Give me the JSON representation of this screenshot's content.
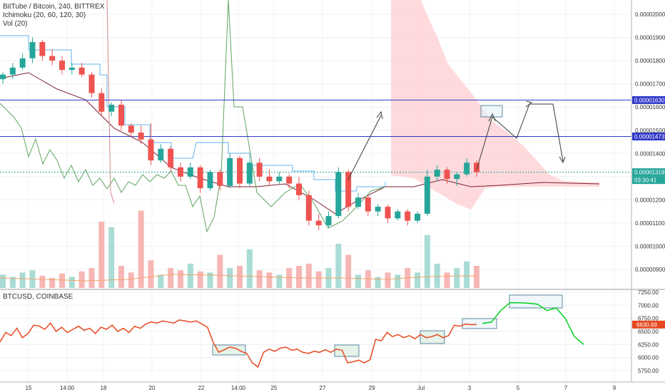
{
  "legend": {
    "symbol": "BitTube / Bitcoin, 240, BITTREX",
    "ichimoku": "Ichimoku (20, 60, 120, 30)",
    "volume": "Vol (20)",
    "lower_symbol": "BTCUSD, COINBASE"
  },
  "colors": {
    "up": "#26a69a",
    "down": "#ef5350",
    "cloud": "#ffcdd2",
    "hline": "#2f37c8",
    "btc_line": "#e8481f",
    "projection": "#00d11c"
  },
  "main_axis": {
    "ticks": [
      "0.00002000",
      "0.00001900",
      "0.00001800",
      "0.00001700",
      "0.00001600",
      "0.00001500",
      "0.00001400",
      "0.00001300",
      "0.00001200",
      "0.00001100",
      "0.00001000",
      "0.00000900"
    ],
    "badges": [
      {
        "label": "0.00001630",
        "color": "#2f37c8"
      },
      {
        "label": "0.00001473",
        "color": "#2f37c8"
      },
      {
        "label": "0.00001319",
        "color": "#26a69a"
      },
      {
        "label": "03:30:41",
        "color": "#26a69a"
      }
    ]
  },
  "lower_axis": {
    "ticks": [
      "7250.00",
      "7000.00",
      "6750.00",
      "6500.00",
      "6250.00",
      "6000.00",
      "5750.00"
    ],
    "badge": "6630.69"
  },
  "x_axis": {
    "ticks": [
      "15",
      "14:00",
      "18",
      "20",
      "22",
      "14:00",
      "25",
      "27",
      "29",
      "Jul",
      "3",
      "5",
      "7",
      "9"
    ]
  },
  "chart_data": [
    {
      "type": "candlestick",
      "title": "BitTube / Bitcoin, 240, BITTREX",
      "ylim": [
        8.5e-06,
        2.1e-05
      ],
      "hlines": [
        1.63e-05,
        1.473e-05
      ],
      "last_price": 1.319e-05,
      "candles": [
        [
          1.72e-05,
          1.75e-05,
          1.7e-05,
          1.74e-05
        ],
        [
          1.74e-05,
          1.79e-05,
          1.72e-05,
          1.77e-05
        ],
        [
          1.77e-05,
          1.83e-05,
          1.76e-05,
          1.81e-05
        ],
        [
          1.81e-05,
          1.9e-05,
          1.79e-05,
          1.88e-05
        ],
        [
          1.88e-05,
          1.89e-05,
          1.8e-05,
          1.82e-05
        ],
        [
          1.82e-05,
          1.85e-05,
          1.78e-05,
          1.8e-05
        ],
        [
          1.8e-05,
          1.82e-05,
          1.74e-05,
          1.76e-05
        ],
        [
          1.76e-05,
          1.79e-05,
          1.74e-05,
          1.77e-05
        ],
        [
          1.77e-05,
          1.79e-05,
          1.73e-05,
          1.74e-05
        ],
        [
          1.74e-05,
          1.75e-05,
          1.64e-05,
          1.66e-05
        ],
        [
          1.66e-05,
          1.68e-05,
          1.56e-05,
          1.58e-05
        ],
        [
          1.58e-05,
          1.62e-05,
          1.56e-05,
          1.61e-05
        ],
        [
          1.61e-05,
          1.63e-05,
          1.5e-05,
          1.52e-05
        ],
        [
          1.52e-05,
          1.53e-05,
          1.47e-05,
          1.49e-05
        ],
        [
          1.49e-05,
          1.52e-05,
          1.44e-05,
          1.46e-05
        ],
        [
          1.46e-05,
          1.53e-05,
          1.35e-05,
          1.37e-05
        ],
        [
          1.37e-05,
          1.44e-05,
          1.36e-05,
          1.42e-05
        ],
        [
          1.42e-05,
          1.43e-05,
          1.32e-05,
          1.34e-05
        ],
        [
          1.34e-05,
          1.36e-05,
          1.28e-05,
          1.3e-05
        ],
        [
          1.3e-05,
          1.36e-05,
          1.29e-05,
          1.34e-05
        ],
        [
          1.34e-05,
          1.35e-05,
          1.23e-05,
          1.25e-05
        ],
        [
          1.25e-05,
          1.33e-05,
          1.24e-05,
          1.32e-05
        ],
        [
          1.32e-05,
          1.33e-05,
          1.24e-05,
          1.26e-05
        ],
        [
          1.26e-05,
          1.4e-05,
          1.25e-05,
          1.38e-05
        ],
        [
          1.38e-05,
          1.39e-05,
          1.25e-05,
          1.27e-05
        ],
        [
          1.27e-05,
          1.37e-05,
          1.26e-05,
          1.36e-05
        ],
        [
          1.36e-05,
          1.38e-05,
          1.28e-05,
          1.3e-05
        ],
        [
          1.3e-05,
          1.33e-05,
          1.26e-05,
          1.28e-05
        ],
        [
          1.28e-05,
          1.32e-05,
          1.27e-05,
          1.3e-05
        ],
        [
          1.3e-05,
          1.31e-05,
          1.25e-05,
          1.27e-05
        ],
        [
          1.27e-05,
          1.3e-05,
          1.2e-05,
          1.22e-05
        ],
        [
          1.22e-05,
          1.24e-05,
          1.09e-05,
          1.11e-05
        ],
        [
          1.11e-05,
          1.14e-05,
          1.07e-05,
          1.09e-05
        ],
        [
          1.09e-05,
          1.15e-05,
          1.08e-05,
          1.13e-05
        ],
        [
          1.13e-05,
          1.34e-05,
          1.12e-05,
          1.32e-05
        ],
        [
          1.32e-05,
          1.33e-05,
          1.15e-05,
          1.17e-05
        ],
        [
          1.17e-05,
          1.23e-05,
          1.16e-05,
          1.21e-05
        ],
        [
          1.21e-05,
          1.22e-05,
          1.13e-05,
          1.15e-05
        ],
        [
          1.15e-05,
          1.18e-05,
          1.13e-05,
          1.17e-05
        ],
        [
          1.17e-05,
          1.18e-05,
          1.1e-05,
          1.12e-05
        ],
        [
          1.12e-05,
          1.16e-05,
          1.11e-05,
          1.15e-05
        ],
        [
          1.15e-05,
          1.16e-05,
          1.09e-05,
          1.11e-05
        ],
        [
          1.11e-05,
          1.15e-05,
          1.1e-05,
          1.14e-05
        ],
        [
          1.14e-05,
          1.33e-05,
          1.13e-05,
          1.3e-05
        ],
        [
          1.3e-05,
          1.35e-05,
          1.28e-05,
          1.33e-05
        ],
        [
          1.33e-05,
          1.34e-05,
          1.27e-05,
          1.29e-05
        ],
        [
          1.29e-05,
          1.32e-05,
          1.26e-05,
          1.31e-05
        ],
        [
          1.31e-05,
          1.38e-05,
          1.3e-05,
          1.36e-05
        ],
        [
          1.36e-05,
          1.37e-05,
          1.3e-05,
          1.319e-05
        ]
      ],
      "volume": [
        12,
        10,
        14,
        16,
        11,
        9,
        13,
        10,
        15,
        18,
        60,
        55,
        20,
        14,
        70,
        25,
        12,
        18,
        16,
        22,
        15,
        14,
        30,
        18,
        20,
        35,
        16,
        14,
        12,
        18,
        20,
        22,
        15,
        18,
        40,
        30,
        12,
        16,
        10,
        14,
        12,
        18,
        14,
        48,
        22,
        14,
        18,
        24,
        20
      ],
      "annotations": [
        "arrow",
        "box",
        "arrow",
        "box",
        "arrow"
      ]
    },
    {
      "type": "line",
      "title": "BTCUSD, COINBASE",
      "ylim": [
        5625,
        7300
      ],
      "last_value": 6630.69,
      "x": [
        0,
        8,
        16,
        24,
        32,
        40,
        48,
        56,
        64,
        72,
        80,
        88,
        96,
        104,
        112,
        120,
        128,
        136,
        144,
        152,
        160,
        168,
        176,
        184,
        192,
        200,
        208,
        216,
        224,
        232,
        240,
        248,
        256,
        264,
        272,
        280,
        288,
        296,
        304,
        312,
        320,
        328,
        336,
        344,
        352,
        360,
        368,
        376,
        384,
        392,
        400,
        408,
        416,
        424,
        432,
        440,
        448,
        456,
        464,
        472,
        480,
        488,
        496,
        504,
        512,
        520,
        528,
        536,
        544,
        552,
        560,
        568,
        576,
        584,
        592,
        600,
        608,
        616,
        624,
        632,
        640,
        648,
        656,
        664,
        672,
        680
      ],
      "values": [
        6300,
        6480,
        6420,
        6560,
        6380,
        6460,
        6620,
        6600,
        6540,
        6660,
        6500,
        6580,
        6480,
        6540,
        6600,
        6520,
        6560,
        6460,
        6580,
        6540,
        6620,
        6500,
        6560,
        6480,
        6600,
        6560,
        6640,
        6680,
        6660,
        6700,
        6680,
        6660,
        6720,
        6700,
        6680,
        6700,
        6640,
        6580,
        6300,
        6100,
        6150,
        6200,
        6180,
        6120,
        6080,
        5900,
        5820,
        6100,
        6160,
        6120,
        6180,
        6200,
        6140,
        6160,
        6100,
        6080,
        6120,
        6100,
        6150,
        6100,
        6160,
        6140,
        5900,
        5920,
        5950,
        5900,
        5960,
        6350,
        6320,
        6480,
        6400,
        6440,
        6380,
        6420,
        6360,
        6440,
        6380,
        6400,
        6440,
        6380,
        6420,
        6620,
        6600,
        6640,
        6630,
        6630.69
      ],
      "projection": [
        6650,
        6680,
        6900,
        7050,
        7050,
        7040,
        7020,
        6900,
        6950,
        6750,
        6400,
        6250
      ],
      "annotations": [
        "box",
        "box",
        "box",
        "box",
        "box",
        "box"
      ]
    }
  ]
}
